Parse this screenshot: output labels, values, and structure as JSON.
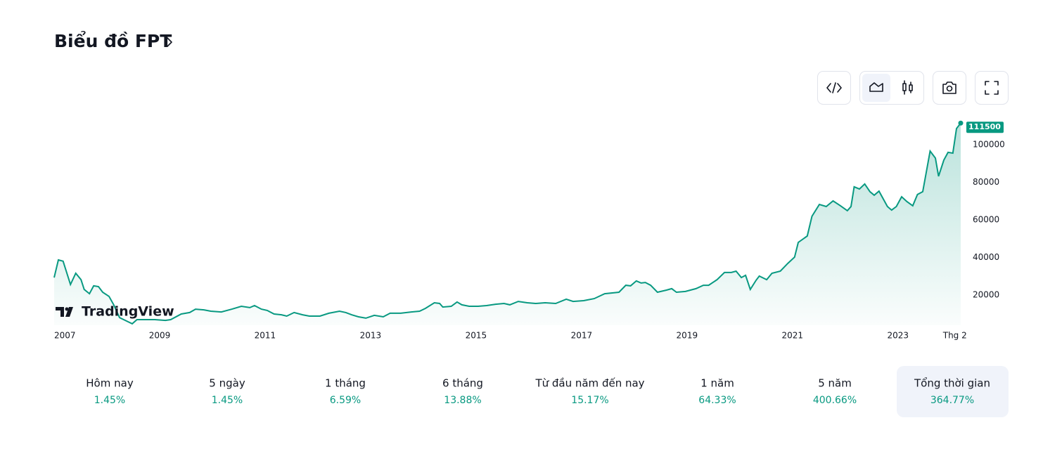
{
  "title": "Biểu đồ FPT",
  "logo": "TradingView",
  "chart_data": {
    "type": "line",
    "color": "#089981",
    "x": [
      2007.0,
      2007.08,
      2007.17,
      2007.31,
      2007.41,
      2007.51,
      2007.57,
      2007.67,
      2007.75,
      2007.84,
      2007.92,
      2008.04,
      2008.13,
      2008.24,
      2008.37,
      2008.48,
      2008.57,
      2008.71,
      2008.91,
      2009.11,
      2009.21,
      2009.41,
      2009.57,
      2009.68,
      2009.84,
      2009.97,
      2010.17,
      2010.37,
      2010.55,
      2010.71,
      2010.8,
      2010.93,
      2011.04,
      2011.17,
      2011.31,
      2011.41,
      2011.55,
      2011.71,
      2011.84,
      2012.04,
      2012.21,
      2012.41,
      2012.53,
      2012.64,
      2012.77,
      2012.91,
      2013.07,
      2013.24,
      2013.37,
      2013.57,
      2013.77,
      2013.93,
      2014.04,
      2014.21,
      2014.31,
      2014.37,
      2014.53,
      2014.64,
      2014.73,
      2014.87,
      2015.04,
      2015.2,
      2015.37,
      2015.53,
      2015.64,
      2015.8,
      2015.97,
      2016.13,
      2016.31,
      2016.51,
      2016.71,
      2016.84,
      2017.04,
      2017.24,
      2017.44,
      2017.71,
      2017.84,
      2017.93,
      2018.04,
      2018.13,
      2018.21,
      2018.31,
      2018.44,
      2018.61,
      2018.71,
      2018.8,
      2018.97,
      2019.17,
      2019.31,
      2019.41,
      2019.57,
      2019.71,
      2019.84,
      2019.93,
      2020.03,
      2020.11,
      2020.2,
      2020.31,
      2020.37,
      2020.51,
      2020.61,
      2020.77,
      2020.91,
      2021.04,
      2021.11,
      2021.28,
      2021.37,
      2021.51,
      2021.64,
      2021.77,
      2021.91,
      2022.04,
      2022.11,
      2022.17,
      2022.27,
      2022.37,
      2022.47,
      2022.55,
      2022.64,
      2022.8,
      2022.88,
      2022.97,
      2023.07,
      2023.17,
      2023.28,
      2023.37,
      2023.47,
      2023.61,
      2023.71,
      2023.77,
      2023.87,
      2023.95,
      2024.04,
      2024.11,
      2024.19
    ],
    "values": [
      29300,
      38700,
      38000,
      25600,
      31600,
      28200,
      23000,
      20700,
      24900,
      24500,
      21500,
      19300,
      14800,
      8000,
      6200,
      4700,
      6900,
      6900,
      6900,
      6500,
      6900,
      9900,
      10700,
      12500,
      12100,
      11400,
      11000,
      12500,
      14000,
      13300,
      14400,
      12500,
      11800,
      9900,
      9500,
      8800,
      10700,
      9500,
      8800,
      8800,
      10300,
      11400,
      10700,
      9500,
      8400,
      7700,
      9200,
      8400,
      10300,
      10300,
      11000,
      11400,
      12900,
      15900,
      15500,
      13600,
      14000,
      16300,
      14800,
      14000,
      14000,
      14400,
      15100,
      15500,
      14800,
      16600,
      15900,
      15500,
      15900,
      15500,
      17800,
      16600,
      17000,
      18100,
      20700,
      21500,
      25200,
      24900,
      27500,
      26400,
      26700,
      25200,
      21500,
      22600,
      23400,
      21500,
      21900,
      23400,
      25200,
      25200,
      28200,
      32000,
      32000,
      32700,
      29300,
      30500,
      23000,
      27900,
      30100,
      28200,
      31600,
      32700,
      36800,
      40200,
      48000,
      51400,
      61900,
      68200,
      67100,
      70100,
      67500,
      64900,
      67100,
      77600,
      76400,
      79100,
      75000,
      73100,
      75300,
      67100,
      65200,
      67100,
      72300,
      69700,
      67500,
      73500,
      75000,
      96600,
      92900,
      83200,
      91800,
      95900,
      95500,
      108600,
      111500
    ],
    "xlim": [
      2007.0,
      2024.19
    ],
    "xticks": [
      2007,
      2009,
      2011,
      2013,
      2015,
      2017,
      2019,
      2021,
      2023,
      {
        "value": 2024.08,
        "label": "Thg 2"
      }
    ],
    "ylim": [
      4000,
      117000
    ],
    "yticks": [
      20000,
      40000,
      60000,
      80000,
      100000
    ]
  },
  "tabs": [
    {
      "label": "Hôm nay",
      "value": "1.45%"
    },
    {
      "label": "5 ngày",
      "value": "1.45%"
    },
    {
      "label": "1 tháng",
      "value": "6.59%"
    },
    {
      "label": "6 tháng",
      "value": "13.88%"
    },
    {
      "label": "Từ đầu năm đến nay",
      "value": "15.17%"
    },
    {
      "label": "1 năm",
      "value": "64.33%"
    },
    {
      "label": "5 năm",
      "value": "400.66%"
    },
    {
      "label": "Tổng thời gian",
      "value": "364.77%"
    }
  ]
}
